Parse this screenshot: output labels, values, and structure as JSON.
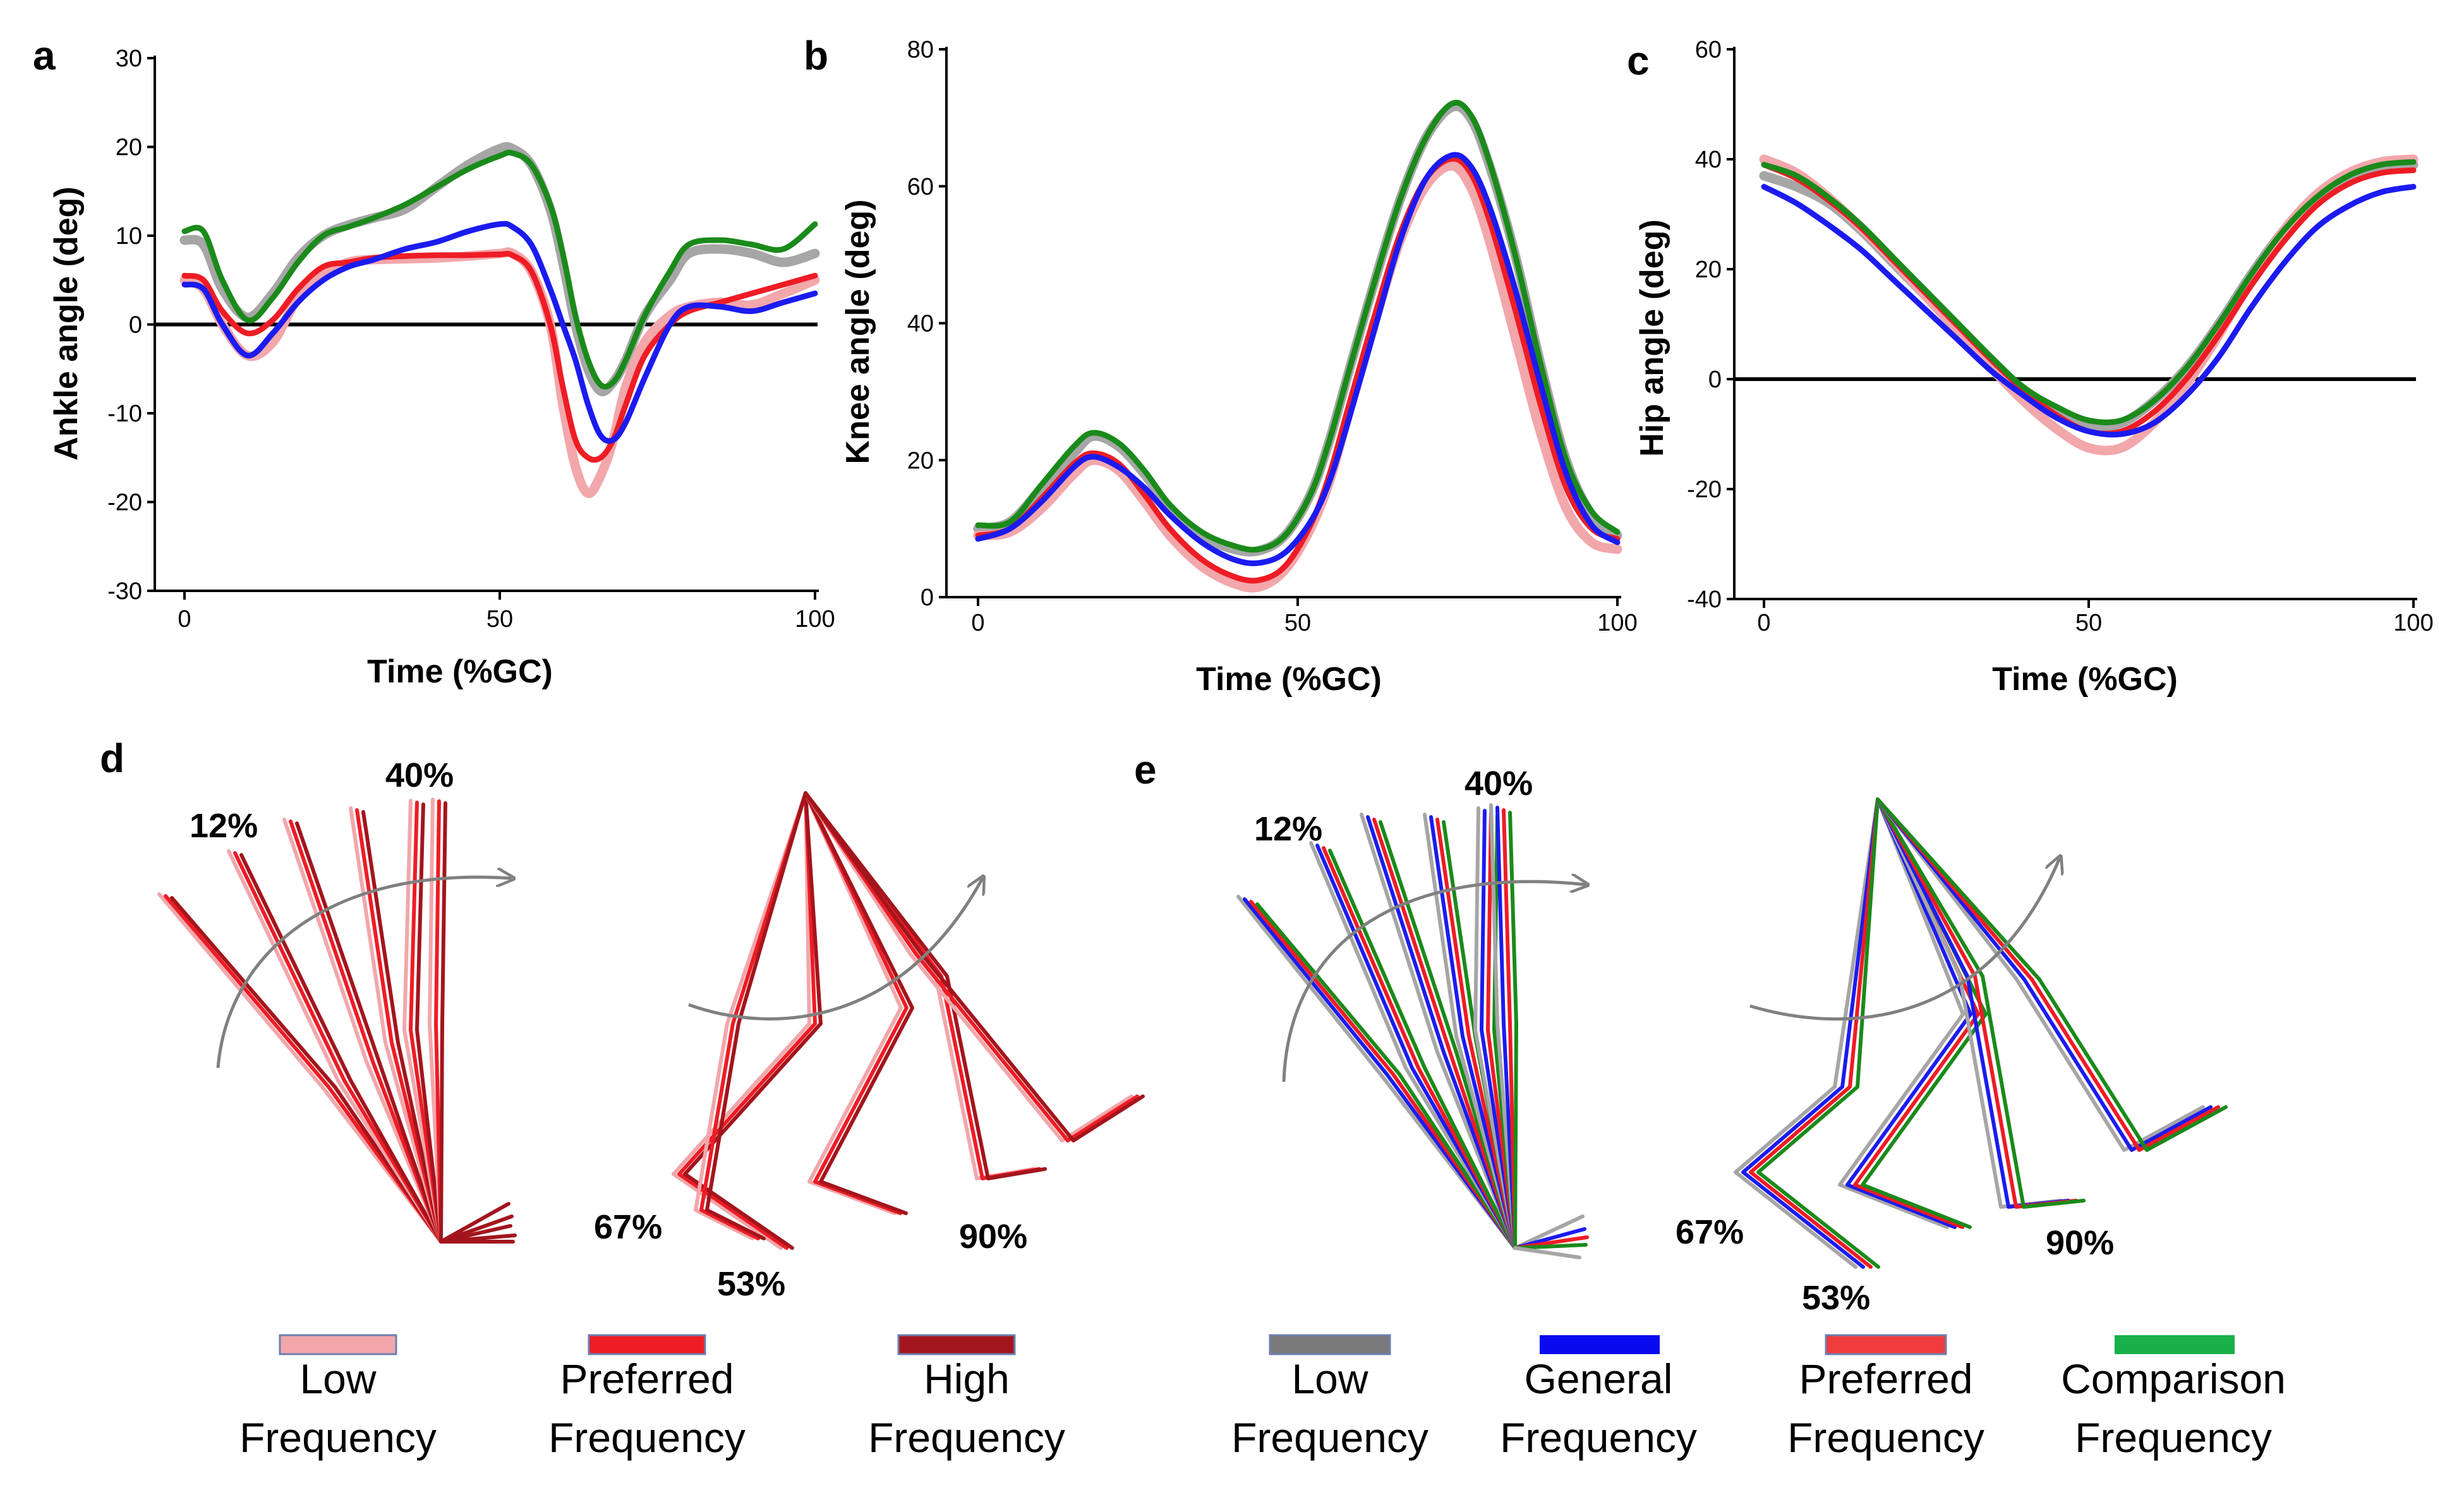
{
  "colors": {
    "low": "#f2a7ab",
    "preferred": "#ee1c25",
    "high": "#a3151d",
    "gray": "#a6a6a6",
    "blue": "#1b1bf0",
    "green": "#1a8a1a",
    "legend_gray": "#7a7a7a",
    "legend_blue": "#0a0aee",
    "legend_red": "#f03c3c",
    "legend_green": "#19b04a"
  },
  "chart_data": [
    {
      "type": "line",
      "panel": "a",
      "xlabel": "Time (%GC)",
      "ylabel": "Ankle angle (deg)",
      "xlim": [
        0,
        100
      ],
      "ylim": [
        -30,
        30
      ],
      "xticks": [
        "0",
        "50",
        "100"
      ],
      "yticks": [
        "-30",
        "-20",
        "-10",
        "0",
        "10",
        "20",
        "30"
      ],
      "zero_line": true,
      "series": [
        {
          "name": "gray",
          "color": "#a6a6a6",
          "x": [
            0,
            3,
            6,
            10,
            14,
            18,
            22,
            26,
            30,
            35,
            40,
            45,
            50,
            52,
            55,
            58,
            60,
            62,
            64,
            66,
            68,
            70,
            73,
            77,
            80,
            85,
            90,
            95,
            100
          ],
          "y": [
            9.5,
            9,
            4,
            0.8,
            3.5,
            7.5,
            10,
            11.2,
            12,
            13,
            15.5,
            18,
            19.8,
            19.8,
            18,
            13,
            7,
            0,
            -5,
            -7.5,
            -6.5,
            -4,
            1,
            5,
            8,
            8.5,
            8,
            7,
            8
          ]
        },
        {
          "name": "green",
          "color": "#1a8a1a",
          "x": [
            0,
            3,
            6,
            10,
            14,
            18,
            22,
            26,
            30,
            35,
            40,
            45,
            50,
            52,
            55,
            58,
            60,
            62,
            64,
            66,
            68,
            70,
            73,
            77,
            80,
            85,
            90,
            95,
            100
          ],
          "y": [
            10.5,
            10.5,
            5,
            0.5,
            3,
            7,
            10,
            11,
            12,
            13.5,
            15.5,
            17.5,
            19,
            19.3,
            18,
            13.5,
            8,
            1,
            -4,
            -6.8,
            -6.5,
            -4,
            1,
            6,
            9,
            9.5,
            9,
            8.5,
            11.3
          ]
        },
        {
          "name": "low",
          "color": "#f2a7ab",
          "x": [
            0,
            3,
            6,
            10,
            14,
            18,
            22,
            26,
            30,
            35,
            40,
            45,
            50,
            52,
            55,
            58,
            60,
            62,
            64,
            66,
            68,
            70,
            73,
            77,
            80,
            85,
            90,
            95,
            100
          ],
          "y": [
            5,
            4,
            0,
            -3.5,
            -2,
            3,
            5.5,
            7,
            7.3,
            7.4,
            7.5,
            7.7,
            8,
            8,
            6,
            0,
            -9,
            -16,
            -19,
            -17,
            -13,
            -7,
            -2,
            1,
            2,
            2.5,
            2.2,
            3.5,
            5
          ]
        },
        {
          "name": "preferred",
          "color": "#ee1c25",
          "x": [
            0,
            3,
            6,
            10,
            14,
            18,
            22,
            26,
            30,
            35,
            40,
            45,
            50,
            52,
            55,
            58,
            60,
            62,
            64,
            66,
            68,
            70,
            73,
            77,
            80,
            85,
            90,
            95,
            100
          ],
          "y": [
            5.5,
            5,
            1.5,
            -1,
            0.5,
            4,
            6.5,
            7,
            7.5,
            7.7,
            7.8,
            7.8,
            7.9,
            7.8,
            6,
            0,
            -7,
            -13,
            -15,
            -15,
            -13,
            -9,
            -3.5,
            0,
            1.5,
            2.5,
            3.5,
            4.5,
            5.5
          ]
        },
        {
          "name": "blue",
          "color": "#1b1bf0",
          "x": [
            0,
            3,
            6,
            10,
            14,
            18,
            22,
            26,
            30,
            35,
            40,
            45,
            50,
            52,
            55,
            58,
            60,
            62,
            64,
            66,
            68,
            70,
            73,
            77,
            80,
            85,
            90,
            95,
            100
          ],
          "y": [
            4.5,
            4,
            0,
            -3.5,
            -1,
            2.5,
            5,
            6.5,
            7.3,
            8.5,
            9.3,
            10.5,
            11.3,
            11,
            9,
            4,
            0,
            -4,
            -9,
            -12.5,
            -13,
            -11,
            -6,
            0,
            2,
            2,
            1.5,
            2.5,
            3.5
          ]
        }
      ]
    },
    {
      "type": "line",
      "panel": "b",
      "xlabel": "Time (%GC)",
      "ylabel": "Knee angle (deg)",
      "xlim": [
        0,
        100
      ],
      "ylim": [
        0,
        80
      ],
      "xticks": [
        "0",
        "50",
        "100"
      ],
      "yticks": [
        "0",
        "20",
        "40",
        "60",
        "80"
      ],
      "zero_line": false,
      "series": [
        {
          "name": "gray",
          "color": "#a6a6a6",
          "x": [
            0,
            5,
            10,
            15,
            18,
            22,
            26,
            30,
            35,
            40,
            44,
            48,
            52,
            55,
            58,
            62,
            66,
            70,
            74,
            77,
            80,
            84,
            88,
            92,
            96,
            100
          ],
          "y": [
            10,
            11,
            16,
            21,
            23.5,
            22,
            18,
            13,
            9,
            7,
            6.8,
            9,
            15,
            23,
            33,
            46,
            58,
            67,
            71.5,
            70,
            63,
            50,
            34,
            20,
            12,
            9
          ]
        },
        {
          "name": "green",
          "color": "#1a8a1a",
          "x": [
            0,
            5,
            10,
            15,
            18,
            22,
            26,
            30,
            35,
            40,
            44,
            48,
            52,
            55,
            58,
            62,
            66,
            70,
            74,
            77,
            80,
            84,
            88,
            92,
            96,
            100
          ],
          "y": [
            10.5,
            11,
            16.5,
            22,
            24,
            22.5,
            18.5,
            13.5,
            9.5,
            7.5,
            7,
            9,
            15,
            23,
            33,
            46,
            58,
            67,
            72,
            70.5,
            63.5,
            50,
            34,
            20,
            12.5,
            9.5
          ]
        },
        {
          "name": "low",
          "color": "#f2a7ab",
          "x": [
            0,
            5,
            10,
            15,
            18,
            22,
            26,
            30,
            35,
            40,
            44,
            48,
            52,
            55,
            58,
            62,
            66,
            70,
            74,
            77,
            80,
            84,
            88,
            92,
            96,
            100
          ],
          "y": [
            9,
            9.5,
            13,
            18,
            20,
            18.5,
            14,
            9,
            4.5,
            2,
            1.5,
            4,
            10,
            17,
            27,
            40,
            52,
            60,
            63,
            60,
            52,
            38,
            24,
            13,
            8,
            7
          ]
        },
        {
          "name": "preferred",
          "color": "#ee1c25",
          "x": [
            0,
            5,
            10,
            15,
            18,
            22,
            26,
            30,
            35,
            40,
            44,
            48,
            52,
            55,
            58,
            62,
            66,
            70,
            74,
            77,
            80,
            84,
            88,
            92,
            96,
            100
          ],
          "y": [
            9,
            10,
            14.5,
            19.5,
            21,
            19.5,
            15,
            10,
            5.5,
            3,
            2.5,
            4.5,
            10.5,
            18,
            28,
            41,
            53,
            61,
            64,
            62,
            55,
            42,
            28,
            16,
            10,
            8.5
          ]
        },
        {
          "name": "blue",
          "color": "#1b1bf0",
          "x": [
            0,
            5,
            10,
            15,
            18,
            22,
            26,
            30,
            35,
            40,
            44,
            48,
            52,
            55,
            58,
            62,
            66,
            70,
            74,
            77,
            80,
            84,
            88,
            92,
            96,
            100
          ],
          "y": [
            8.5,
            10,
            14,
            19,
            20.5,
            19,
            16,
            12,
            8,
            5.5,
            5,
            6.5,
            11,
            17,
            26,
            39,
            52,
            61,
            64.5,
            63,
            57,
            45,
            31,
            18,
            10.5,
            8
          ]
        }
      ]
    },
    {
      "type": "line",
      "panel": "c",
      "xlabel": "Time (%GC)",
      "ylabel": "Hip angle (deg)",
      "xlim": [
        0,
        100
      ],
      "ylim": [
        -40,
        60
      ],
      "xticks": [
        "0",
        "50",
        "100"
      ],
      "yticks": [
        "-40",
        "-20",
        "0",
        "20",
        "40",
        "60"
      ],
      "zero_line": true,
      "series": [
        {
          "name": "gray",
          "color": "#a6a6a6",
          "x": [
            0,
            5,
            10,
            15,
            20,
            25,
            30,
            35,
            40,
            45,
            50,
            55,
            60,
            65,
            70,
            75,
            80,
            85,
            90,
            95,
            100
          ],
          "y": [
            37,
            35,
            32,
            27,
            21,
            15,
            9,
            3,
            -2,
            -6,
            -8.5,
            -8,
            -4,
            2,
            10,
            19,
            27,
            33,
            37,
            38.5,
            39
          ]
        },
        {
          "name": "low",
          "color": "#f2a7ab",
          "x": [
            0,
            5,
            10,
            15,
            20,
            25,
            30,
            35,
            40,
            45,
            50,
            55,
            60,
            65,
            70,
            75,
            80,
            85,
            90,
            95,
            100
          ],
          "y": [
            40,
            37.5,
            33,
            27.5,
            21.5,
            15,
            8.5,
            2,
            -4,
            -9,
            -12.5,
            -12.5,
            -8,
            -1,
            8,
            18,
            27,
            33.5,
            37.5,
            39.5,
            40
          ]
        },
        {
          "name": "preferred",
          "color": "#ee1c25",
          "x": [
            0,
            5,
            10,
            15,
            20,
            25,
            30,
            35,
            40,
            45,
            50,
            55,
            60,
            65,
            70,
            75,
            80,
            85,
            90,
            95,
            100
          ],
          "y": [
            39,
            36.5,
            32.5,
            27.5,
            21.5,
            15.5,
            9.5,
            3.5,
            -2,
            -6.5,
            -9.5,
            -9.5,
            -6,
            0,
            8,
            17,
            25,
            31.5,
            35.5,
            37.5,
            38
          ]
        },
        {
          "name": "green",
          "color": "#1a8a1a",
          "x": [
            0,
            5,
            10,
            15,
            20,
            25,
            30,
            35,
            40,
            45,
            50,
            55,
            60,
            65,
            70,
            75,
            80,
            85,
            90,
            95,
            100
          ],
          "y": [
            39,
            37,
            33,
            28,
            22,
            16,
            10,
            4,
            -1.5,
            -5,
            -7.5,
            -7.5,
            -4,
            2,
            10,
            19,
            27,
            33,
            37,
            39,
            39.5
          ]
        },
        {
          "name": "blue",
          "color": "#1b1bf0",
          "x": [
            0,
            5,
            10,
            15,
            20,
            25,
            30,
            35,
            40,
            45,
            50,
            55,
            60,
            65,
            70,
            75,
            80,
            85,
            90,
            95,
            100
          ],
          "y": [
            35,
            32,
            28,
            23.5,
            18,
            12.5,
            7,
            1.5,
            -3,
            -7,
            -9.5,
            -10,
            -8,
            -3,
            4,
            13,
            21,
            27.5,
            31.5,
            34,
            35
          ]
        }
      ]
    }
  ],
  "panels": {
    "d": {
      "label": "d",
      "hip_pcts": [
        "12%",
        "40%"
      ],
      "knee_pcts": [
        "67%",
        "53%",
        "90%"
      ],
      "legend": [
        {
          "line1": "Low",
          "line2": "Frequency",
          "swatch_color": "#f2a7ab"
        },
        {
          "line1": "Preferred",
          "line2": "Frequency",
          "swatch_color": "#ee1c25"
        },
        {
          "line1": "High",
          "line2": "Frequency",
          "swatch_color": "#a3151d"
        }
      ]
    },
    "e": {
      "label": "e",
      "hip_pcts": [
        "12%",
        "40%"
      ],
      "knee_pcts": [
        "67%",
        "53%",
        "90%"
      ],
      "legend": [
        {
          "line1": "Low",
          "line2": "Frequency",
          "swatch_color": "#7a7a7a"
        },
        {
          "line1": "General",
          "line2": "Frequency",
          "swatch_color": "#0a0aee"
        },
        {
          "line1": "Preferred",
          "line2": "Frequency",
          "swatch_color": "#f03c3c"
        },
        {
          "line1": "Comparison",
          "line2": "Frequency",
          "swatch_color": "#19b04a"
        }
      ]
    }
  }
}
